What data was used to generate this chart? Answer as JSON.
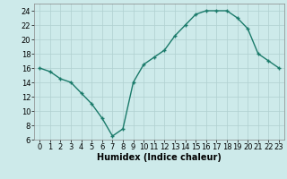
{
  "x": [
    0,
    1,
    2,
    3,
    4,
    5,
    6,
    7,
    8,
    9,
    10,
    11,
    12,
    13,
    14,
    15,
    16,
    17,
    18,
    19,
    20,
    21,
    22,
    23
  ],
  "y": [
    16,
    15.5,
    14.5,
    14,
    12.5,
    11,
    9,
    6.5,
    7.5,
    14,
    16.5,
    17.5,
    18.5,
    20.5,
    22,
    23.5,
    24,
    24,
    24,
    23,
    21.5,
    18,
    17,
    16
  ],
  "line_color": "#1a7a6a",
  "marker": "+",
  "marker_color": "#1a7a6a",
  "bg_color": "#cdeaea",
  "grid_color": "#b0d0d0",
  "xlabel": "Humidex (Indice chaleur)",
  "xlabel_fontsize": 7,
  "tick_fontsize": 6,
  "xlim": [
    -0.5,
    23.5
  ],
  "ylim": [
    6,
    25
  ],
  "yticks": [
    6,
    8,
    10,
    12,
    14,
    16,
    18,
    20,
    22,
    24
  ],
  "xticks": [
    0,
    1,
    2,
    3,
    4,
    5,
    6,
    7,
    8,
    9,
    10,
    11,
    12,
    13,
    14,
    15,
    16,
    17,
    18,
    19,
    20,
    21,
    22,
    23
  ],
  "linewidth": 1.0,
  "markersize": 3.5
}
